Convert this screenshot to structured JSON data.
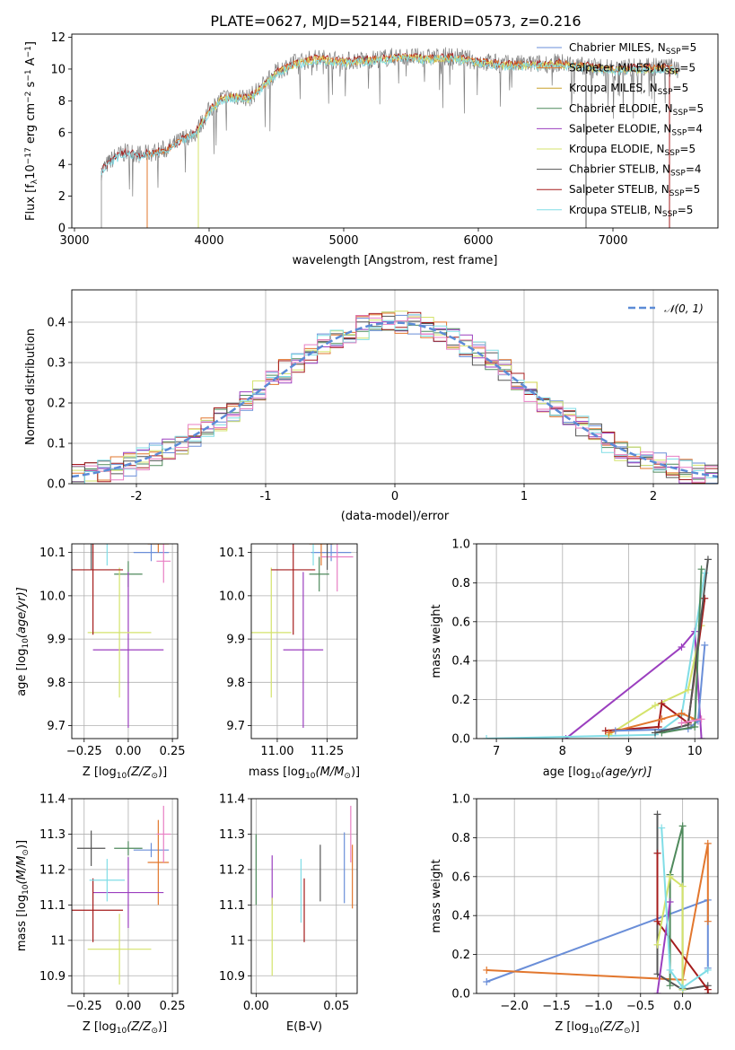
{
  "figure": {
    "title": "PLATE=0627, MJD=52144, FIBERID=0573, z=0.216"
  },
  "colors": {
    "Chabrier MILES": "#6a8ed8",
    "Salpeter MILES": "#e2772e",
    "Kroupa MILES": "#c8a02a",
    "Chabrier ELODIE": "#4f8a5c",
    "Salpeter ELODIE": "#9b3fbf",
    "Kroupa ELODIE": "#d4e36b",
    "Chabrier STELIB": "#555555",
    "Salpeter STELIB": "#a51c1c",
    "Kroupa STELIB": "#80dde6",
    "Pink": "#e87fc3",
    "Data": "#7f7f7f"
  },
  "chart_data": [
    {
      "id": "spectrum",
      "type": "line",
      "title": "PLATE=0627, MJD=52144, FIBERID=0573, z=0.216",
      "xlabel": "wavelength [Angstrom, rest frame]",
      "ylabel_parts": [
        "Flux [f",
        "λ",
        "10",
        "−17",
        " erg cm",
        "−2",
        " s",
        "−1",
        " A",
        "−1",
        "]"
      ],
      "xlim": [
        2980,
        7780
      ],
      "ylim": [
        0,
        12.2
      ],
      "xticks": [
        3000,
        4000,
        5000,
        6000,
        7000
      ],
      "yticks": [
        0,
        2,
        4,
        6,
        8,
        10,
        12
      ],
      "grid": false,
      "legend_position": "top-right",
      "legend": [
        {
          "label": "Chabrier MILES, N",
          "sub": "SSP",
          "suffix": "=5",
          "key": "Chabrier MILES"
        },
        {
          "label": "Salpeter MILES, N",
          "sub": "SSP",
          "suffix": "=5",
          "key": "Salpeter MILES"
        },
        {
          "label": "Kroupa MILES, N",
          "sub": "SSP",
          "suffix": "=5",
          "key": "Kroupa MILES"
        },
        {
          "label": "Chabrier ELODIE, N",
          "sub": "SSP",
          "suffix": "=5",
          "key": "Chabrier ELODIE"
        },
        {
          "label": "Salpeter ELODIE, N",
          "sub": "SSP",
          "suffix": "=4",
          "key": "Salpeter ELODIE"
        },
        {
          "label": "Kroupa ELODIE, N",
          "sub": "SSP",
          "suffix": "=5",
          "key": "Kroupa ELODIE"
        },
        {
          "label": "Chabrier STELIB, N",
          "sub": "SSP",
          "suffix": "=4",
          "key": "Chabrier STELIB"
        },
        {
          "label": "Salpeter STELIB, N",
          "sub": "SSP",
          "suffix": "=5",
          "key": "Salpeter STELIB"
        },
        {
          "label": "Kroupa STELIB, N",
          "sub": "SSP",
          "suffix": "=5",
          "key": "Kroupa STELIB"
        }
      ],
      "continuum": [
        [
          3200,
          3.6
        ],
        [
          3300,
          4.5
        ],
        [
          3400,
          4.8
        ],
        [
          3500,
          4.6
        ],
        [
          3600,
          4.8
        ],
        [
          3700,
          5.0
        ],
        [
          3800,
          5.6
        ],
        [
          3900,
          6.0
        ],
        [
          4000,
          7.4
        ],
        [
          4100,
          8.2
        ],
        [
          4200,
          8.3
        ],
        [
          4300,
          8.2
        ],
        [
          4400,
          9.0
        ],
        [
          4500,
          9.8
        ],
        [
          4600,
          10.3
        ],
        [
          4800,
          10.7
        ],
        [
          5000,
          10.5
        ],
        [
          5200,
          10.6
        ],
        [
          5400,
          10.8
        ],
        [
          5600,
          10.7
        ],
        [
          5800,
          10.8
        ],
        [
          6000,
          10.5
        ],
        [
          6200,
          10.3
        ],
        [
          6400,
          10.3
        ],
        [
          6600,
          10.4
        ],
        [
          6800,
          10.2
        ],
        [
          7000,
          10.0
        ],
        [
          7200,
          10.1
        ],
        [
          7400,
          10.1
        ],
        [
          7500,
          10.0
        ]
      ],
      "cutoffs": [
        {
          "x": 3540,
          "key": "Salpeter MILES"
        },
        {
          "x": 3920,
          "key": "Kroupa ELODIE"
        },
        {
          "x": 6800,
          "key": "Chabrier STELIB"
        },
        {
          "x": 7420,
          "key": "Salpeter STELIB"
        }
      ]
    },
    {
      "id": "residuals",
      "type": "bar",
      "xlabel": "(data-model)/error",
      "ylabel": "Normed distribution",
      "xlim": [
        -2.5,
        2.5
      ],
      "ylim": [
        0,
        0.48
      ],
      "xticks": [
        -2,
        -1,
        0,
        1,
        2
      ],
      "yticks": [
        0.0,
        0.1,
        0.2,
        0.3,
        0.4
      ],
      "grid": true,
      "legend_position": "top-right",
      "legend": [
        {
          "label": "𝒩(0, 1)",
          "style": "dashed",
          "color": "#5b8bd6"
        }
      ],
      "bin_width": 0.1,
      "series_keys": [
        "Chabrier MILES",
        "Salpeter MILES",
        "Chabrier ELODIE",
        "Salpeter ELODIE",
        "Kroupa ELODIE",
        "Chabrier STELIB",
        "Salpeter STELIB",
        "Kroupa STELIB",
        "Pink"
      ]
    },
    {
      "id": "age-vs-Z",
      "type": "scatter",
      "xlabel_parts": [
        "Z [log",
        "10",
        "(Z/Z",
        "⊙",
        ")]"
      ],
      "ylabel_parts": [
        "age  [log",
        "10",
        "(age/yr)]"
      ],
      "xlim": [
        -0.32,
        0.28
      ],
      "ylim": [
        9.67,
        10.12
      ],
      "xticks": [
        -0.25,
        0.0,
        0.25
      ],
      "xticklabels": [
        "−0.25",
        "0.00",
        "0.25"
      ],
      "yticks": [
        9.7,
        9.8,
        9.9,
        10.0,
        10.1
      ],
      "grid": true,
      "points": [
        {
          "key": "Chabrier MILES",
          "x": 0.13,
          "y": 10.1,
          "xe": 0.1,
          "ye": 0.02
        },
        {
          "key": "Salpeter MILES",
          "x": 0.17,
          "y": 10.12,
          "xe": 0.06,
          "ye": 0.02
        },
        {
          "key": "Pink",
          "x": 0.2,
          "y": 10.08,
          "xe": 0.04,
          "ye": 0.05
        },
        {
          "key": "Chabrier ELODIE",
          "x": -0.0,
          "y": 10.05,
          "xe": 0.08,
          "ye": 0.03
        },
        {
          "key": "Salpeter ELODIE",
          "x": 0.0,
          "y": 9.875,
          "xe": 0.2,
          "ye": 0.18
        },
        {
          "key": "Kroupa ELODIE",
          "x": -0.05,
          "y": 9.915,
          "xe": 0.18,
          "ye": 0.15
        },
        {
          "key": "Chabrier STELIB",
          "x": -0.21,
          "y": 10.16,
          "xe": 0.08,
          "ye": 0.1
        },
        {
          "key": "Salpeter STELIB",
          "x": -0.2,
          "y": 10.06,
          "xe": 0.17,
          "ye": 0.15
        },
        {
          "key": "Kroupa STELIB",
          "x": -0.12,
          "y": 10.16,
          "xe": 0.2,
          "ye": 0.09
        }
      ]
    },
    {
      "id": "age-vs-mass",
      "type": "scatter",
      "xlabel_parts": [
        "mass [log",
        "10",
        "(M/M",
        "⊙",
        ")]"
      ],
      "xlim": [
        10.87,
        11.4
      ],
      "ylim": [
        9.67,
        10.12
      ],
      "xticks": [
        11.0,
        11.25
      ],
      "xticklabels": [
        "11.00",
        "11.25"
      ],
      "yticks": [
        9.7,
        9.8,
        9.9,
        10.0,
        10.1
      ],
      "grid": true,
      "points": [
        {
          "key": "Chabrier MILES",
          "x": 11.27,
          "y": 10.1,
          "xe": 0.1,
          "ye": 0.02
        },
        {
          "key": "Salpeter MILES",
          "x": 11.22,
          "y": 10.12,
          "xe": 0.06,
          "ye": 0.05
        },
        {
          "key": "Pink",
          "x": 11.3,
          "y": 10.09,
          "xe": 0.08,
          "ye": 0.08
        },
        {
          "key": "Chabrier ELODIE",
          "x": 11.21,
          "y": 10.05,
          "xe": 0.05,
          "ye": 0.04
        },
        {
          "key": "Salpeter ELODIE",
          "x": 11.13,
          "y": 9.875,
          "xe": 0.1,
          "ye": 0.18
        },
        {
          "key": "Kroupa ELODIE",
          "x": 10.97,
          "y": 9.915,
          "xe": 0.1,
          "ye": 0.15
        },
        {
          "key": "Chabrier STELIB",
          "x": 11.25,
          "y": 10.16,
          "xe": 0.09,
          "ye": 0.1
        },
        {
          "key": "Salpeter STELIB",
          "x": 11.08,
          "y": 10.06,
          "xe": 0.11,
          "ye": 0.15
        },
        {
          "key": "Kroupa STELIB",
          "x": 11.18,
          "y": 10.16,
          "xe": 0.14,
          "ye": 0.09
        }
      ]
    },
    {
      "id": "weight-vs-age",
      "type": "line",
      "xlabel_parts": [
        "age  [log",
        "10",
        "(age/yr)]"
      ],
      "ylabel": "mass weight",
      "xlim": [
        6.7,
        10.35
      ],
      "ylim": [
        0,
        1.0
      ],
      "xticks": [
        7,
        8,
        9,
        10
      ],
      "yticks": [
        0.0,
        0.2,
        0.4,
        0.6,
        0.8,
        1.0
      ],
      "grid": true,
      "series": [
        {
          "key": "Salpeter ELODIE",
          "x": [
            8.05,
            9.8,
            10.0,
            10.1
          ],
          "y": [
            0.0,
            0.47,
            0.55,
            0.0
          ]
        },
        {
          "key": "Kroupa STELIB",
          "x": [
            6.85,
            9.4,
            9.8,
            10.15
          ],
          "y": [
            0.0,
            0.02,
            0.12,
            0.85
          ]
        },
        {
          "key": "Kroupa ELODIE",
          "x": [
            8.7,
            9.4,
            9.9,
            10.1
          ],
          "y": [
            0.02,
            0.17,
            0.25,
            0.58
          ]
        },
        {
          "key": "Salpeter STELIB",
          "x": [
            8.65,
            9.45,
            9.5,
            9.9,
            10.15
          ],
          "y": [
            0.04,
            0.06,
            0.18,
            0.08,
            0.72
          ]
        },
        {
          "key": "Salpeter MILES",
          "x": [
            8.7,
            9.5,
            9.8,
            10.0
          ],
          "y": [
            0.03,
            0.1,
            0.13,
            0.1
          ]
        },
        {
          "key": "Chabrier MILES",
          "x": [
            8.8,
            9.9,
            10.05,
            10.15
          ],
          "y": [
            0.04,
            0.05,
            0.09,
            0.48
          ]
        },
        {
          "key": "Chabrier ELODIE",
          "x": [
            9.5,
            10.0,
            10.1
          ],
          "y": [
            0.03,
            0.06,
            0.87
          ]
        },
        {
          "key": "Chabrier STELIB",
          "x": [
            9.4,
            9.9,
            10.2
          ],
          "y": [
            0.03,
            0.07,
            0.92
          ]
        },
        {
          "key": "Pink",
          "x": [
            9.8,
            10.1
          ],
          "y": [
            0.08,
            0.1
          ]
        }
      ]
    },
    {
      "id": "mass-vs-Z",
      "type": "scatter",
      "xlabel_parts": [
        "Z [log",
        "10",
        "(Z/Z",
        "⊙",
        ")]"
      ],
      "ylabel_parts": [
        "mass [log",
        "10",
        "(M/M",
        "⊙",
        ")]"
      ],
      "xlim": [
        -0.32,
        0.28
      ],
      "ylim": [
        10.85,
        11.4
      ],
      "xticks": [
        -0.25,
        0.0,
        0.25
      ],
      "xticklabels": [
        "−0.25",
        "0.00",
        "0.25"
      ],
      "yticks": [
        10.9,
        11.0,
        11.1,
        11.2,
        11.3,
        11.4
      ],
      "grid": true,
      "points": [
        {
          "key": "Chabrier MILES",
          "x": 0.13,
          "y": 11.255,
          "xe": 0.1,
          "ye": 0.02
        },
        {
          "key": "Salpeter MILES",
          "x": 0.17,
          "y": 11.22,
          "xe": 0.06,
          "ye": 0.12
        },
        {
          "key": "Pink",
          "x": 0.2,
          "y": 11.3,
          "xe": 0.04,
          "ye": 0.08
        },
        {
          "key": "Chabrier ELODIE",
          "x": -0.0,
          "y": 11.26,
          "xe": 0.08,
          "ye": 0.02
        },
        {
          "key": "Salpeter ELODIE",
          "x": 0.0,
          "y": 11.135,
          "xe": 0.2,
          "ye": 0.1
        },
        {
          "key": "Kroupa ELODIE",
          "x": -0.05,
          "y": 10.975,
          "xe": 0.18,
          "ye": 0.1
        },
        {
          "key": "Chabrier STELIB",
          "x": -0.21,
          "y": 11.26,
          "xe": 0.08,
          "ye": 0.05
        },
        {
          "key": "Salpeter STELIB",
          "x": -0.2,
          "y": 11.085,
          "xe": 0.17,
          "ye": 0.09
        },
        {
          "key": "Kroupa STELIB",
          "x": -0.12,
          "y": 11.17,
          "xe": 0.1,
          "ye": 0.06
        }
      ]
    },
    {
      "id": "mass-vs-ebv",
      "type": "scatter",
      "xlabel": "E(B-V)",
      "xlim": [
        -0.003,
        0.063
      ],
      "ylim": [
        10.85,
        11.4
      ],
      "xticks": [
        0.0,
        0.05
      ],
      "xticklabels": [
        "0.00",
        "0.05"
      ],
      "yticks": [
        10.9,
        11.0,
        11.1,
        11.2,
        11.3,
        11.4
      ],
      "grid": true,
      "points": [
        {
          "key": "Chabrier ELODIE",
          "x": 0.0,
          "y": 11.2,
          "xe": 0,
          "ye": 0.1
        },
        {
          "key": "Salpeter ELODIE",
          "x": 0.01,
          "y": 11.17,
          "xe": 0,
          "ye": 0.07
        },
        {
          "key": "Kroupa ELODIE",
          "x": 0.01,
          "y": 11.01,
          "xe": 0,
          "ye": 0.11
        },
        {
          "key": "Kroupa STELIB",
          "x": 0.028,
          "y": 11.14,
          "xe": 0,
          "ye": 0.09
        },
        {
          "key": "Salpeter STELIB",
          "x": 0.03,
          "y": 11.085,
          "xe": 0,
          "ye": 0.09
        },
        {
          "key": "Chabrier STELIB",
          "x": 0.04,
          "y": 11.19,
          "xe": 0,
          "ye": 0.08
        },
        {
          "key": "Chabrier MILES",
          "x": 0.055,
          "y": 11.205,
          "xe": 0,
          "ye": 0.1
        },
        {
          "key": "Pink",
          "x": 0.059,
          "y": 11.3,
          "xe": 0,
          "ye": 0.08
        },
        {
          "key": "Salpeter MILES",
          "x": 0.06,
          "y": 11.18,
          "xe": 0,
          "ye": 0.09
        }
      ]
    },
    {
      "id": "weight-vs-Z",
      "type": "line",
      "xlabel_parts": [
        "Z [log",
        "10",
        "(Z/Z",
        "⊙",
        ")]"
      ],
      "ylabel": "mass weight",
      "xlim": [
        -2.45,
        0.42
      ],
      "ylim": [
        0,
        1.0
      ],
      "xticks": [
        -2.0,
        -1.5,
        -1.0,
        -0.5,
        0.0
      ],
      "xticklabels": [
        "−2.0",
        "−1.5",
        "−1.0",
        "−0.5",
        "0.0"
      ],
      "yticks": [
        0.0,
        0.2,
        0.4,
        0.6,
        0.8,
        1.0
      ],
      "grid": true,
      "series": [
        {
          "key": "Chabrier MILES",
          "x": [
            -2.33,
            0.3,
            0.3
          ],
          "y": [
            0.06,
            0.48,
            0.13
          ]
        },
        {
          "key": "Salpeter MILES",
          "x": [
            -2.33,
            0.0,
            0.3,
            0.3
          ],
          "y": [
            0.12,
            0.07,
            0.77,
            0.37
          ]
        },
        {
          "key": "Chabrier STELIB",
          "x": [
            -0.3,
            -0.3,
            0.0,
            0.3
          ],
          "y": [
            0.92,
            0.1,
            0.02,
            0.04
          ]
        },
        {
          "key": "Salpeter STELIB",
          "x": [
            -0.3,
            -0.3,
            0.3,
            0.3
          ],
          "y": [
            0.72,
            0.37,
            0.02,
            0.0
          ]
        },
        {
          "key": "Chabrier ELODIE",
          "x": [
            -0.15,
            -0.15,
            0.0,
            0.0
          ],
          "y": [
            0.04,
            0.61,
            0.86,
            0.02
          ]
        },
        {
          "key": "Salpeter ELODIE",
          "x": [
            -0.3,
            -0.15
          ],
          "y": [
            0.0,
            0.47
          ]
        },
        {
          "key": "Kroupa ELODIE",
          "x": [
            -0.3,
            -0.15,
            0.0,
            0.0
          ],
          "y": [
            0.25,
            0.6,
            0.55,
            0.02
          ]
        },
        {
          "key": "Kroupa STELIB",
          "x": [
            -0.25,
            -0.15,
            0.0,
            0.3
          ],
          "y": [
            0.85,
            0.12,
            0.03,
            0.12
          ]
        }
      ]
    }
  ]
}
